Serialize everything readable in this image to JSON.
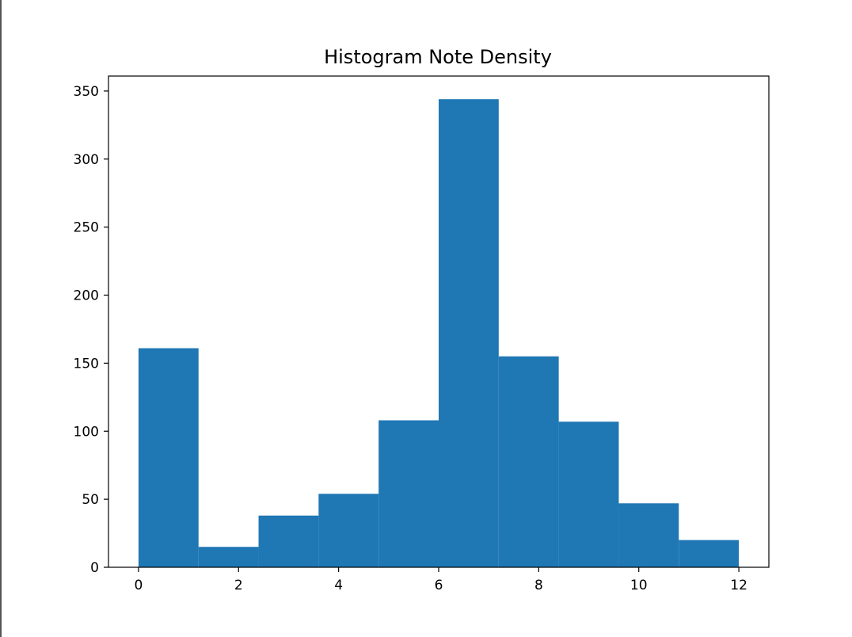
{
  "chart_data": {
    "type": "bar",
    "title": "Histogram Note Density",
    "xlabel": "",
    "ylabel": "",
    "bin_edges": [
      0,
      1.2,
      2.4,
      3.6,
      4.8,
      6.0,
      7.2,
      8.4,
      9.6,
      10.8,
      12.0
    ],
    "values": [
      161,
      15,
      38,
      54,
      108,
      344,
      155,
      107,
      47,
      20
    ],
    "xlim": [
      -0.6,
      12.6
    ],
    "ylim": [
      0,
      361
    ],
    "xticks": [
      0,
      2,
      4,
      6,
      8,
      10,
      12
    ],
    "yticks": [
      0,
      50,
      100,
      150,
      200,
      250,
      300,
      350
    ],
    "bar_color": "#1f77b4",
    "grid": false
  }
}
